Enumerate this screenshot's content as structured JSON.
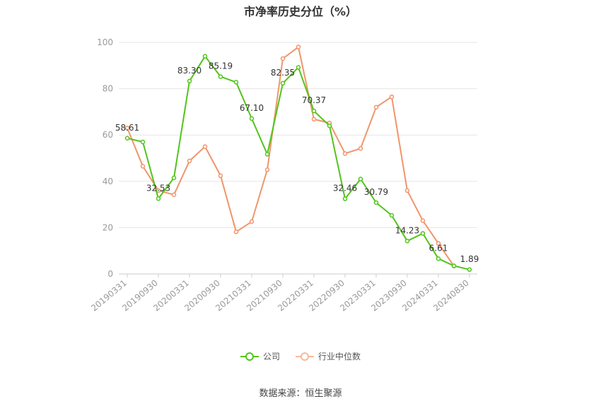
{
  "chart_data": {
    "type": "line",
    "title": "市净率历史分位（%）",
    "ylim": [
      0,
      100
    ],
    "yticks": [
      0,
      20,
      40,
      60,
      80,
      100
    ],
    "x_tick_labels": [
      "20190331",
      "20190930",
      "20200331",
      "20200930",
      "20210331",
      "20210930",
      "20220331",
      "20220930",
      "20230331",
      "20230930",
      "20240331",
      "20240830"
    ],
    "grid": true,
    "legend_position": "bottom",
    "series": [
      {
        "name": "公司",
        "color": "#52c41a",
        "values": [
          58.61,
          57,
          32.53,
          41.5,
          83.3,
          94,
          85.19,
          82.8,
          67.1,
          51.7,
          82.35,
          89.2,
          70.37,
          64,
          32.46,
          41,
          30.79,
          25.3,
          14.23,
          17.5,
          6.61,
          3.5,
          1.89
        ],
        "point_labels": [
          "58.61",
          "",
          "32.53",
          "",
          "83.30",
          "",
          "85.19",
          "",
          "67.10",
          "",
          "82.35",
          "",
          "70.37",
          "",
          "32.46",
          "",
          "30.79",
          "",
          "14.23",
          "",
          "6.61",
          "",
          "1.89"
        ]
      },
      {
        "name": "行业中位数",
        "color": "#f0956a",
        "values": [
          63,
          46.5,
          36,
          34.2,
          48.8,
          55,
          42.4,
          18.2,
          22.6,
          45,
          93,
          98,
          66.8,
          65.2,
          52,
          54.2,
          72,
          76.5,
          36,
          23,
          13.2,
          3.4,
          null
        ]
      }
    ]
  },
  "source_text": "数据来源：恒生聚源"
}
